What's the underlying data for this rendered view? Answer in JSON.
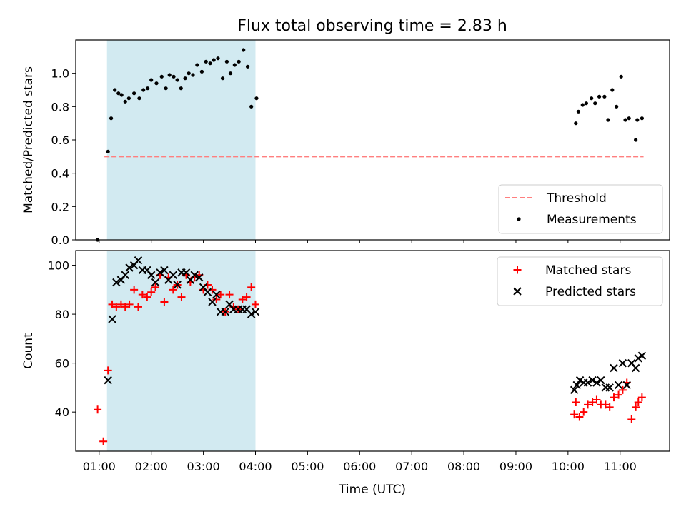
{
  "figure": {
    "title": "Flux total observing time = 2.83 h",
    "xlabel": "Time (UTC)"
  },
  "colors": {
    "highlight": "#add8e6",
    "threshold": "#ff7f7f",
    "measurements": "#000000",
    "matched": "#ff0000",
    "predicted": "#000000"
  },
  "chart_data": [
    {
      "type": "scatter",
      "title": "Flux total observing time = 2.83 h",
      "xlabel": "",
      "ylabel": "Matched/Predicted stars",
      "xlim_hours": [
        0.55,
        11.95
      ],
      "ylim": [
        0,
        1.2
      ],
      "yticks": [
        0.0,
        0.2,
        0.4,
        0.6,
        0.8,
        1.0
      ],
      "ytick_labels": [
        "0.0",
        "0.2",
        "0.4",
        "0.6",
        "0.8",
        "1.0"
      ],
      "highlight_span_hours": [
        1.15,
        4.0
      ],
      "threshold": {
        "name": "Threshold",
        "y": 0.5,
        "x_from_hours": 1.1,
        "x_to_hours": 11.45,
        "style": "dashed"
      },
      "legend_position": "lower right",
      "series": [
        {
          "name": "Measurements",
          "marker": "dot",
          "x_hours": [
            0.97,
            1.17,
            1.23,
            1.3,
            1.37,
            1.43,
            1.5,
            1.57,
            1.67,
            1.77,
            1.85,
            1.93,
            2.0,
            2.1,
            2.2,
            2.28,
            2.35,
            2.43,
            2.5,
            2.57,
            2.65,
            2.72,
            2.8,
            2.88,
            2.97,
            3.05,
            3.13,
            3.2,
            3.28,
            3.37,
            3.45,
            3.52,
            3.6,
            3.68,
            3.77,
            3.85,
            3.92,
            4.02,
            10.15,
            10.2,
            10.28,
            10.35,
            10.45,
            10.52,
            10.6,
            10.7,
            10.77,
            10.85,
            10.93,
            11.02,
            11.1,
            11.17,
            11.3,
            11.33,
            11.42
          ],
          "y": [
            0.0,
            0.53,
            0.73,
            0.9,
            0.88,
            0.87,
            0.83,
            0.85,
            0.88,
            0.85,
            0.9,
            0.91,
            0.96,
            0.94,
            0.98,
            0.91,
            0.99,
            0.98,
            0.96,
            0.91,
            0.97,
            1.0,
            0.99,
            1.05,
            1.01,
            1.07,
            1.06,
            1.08,
            1.09,
            0.97,
            1.07,
            1.0,
            1.05,
            1.07,
            1.14,
            1.04,
            0.8,
            0.85,
            0.7,
            0.77,
            0.81,
            0.82,
            0.85,
            0.82,
            0.86,
            0.86,
            0.72,
            0.9,
            0.8,
            0.98,
            0.72,
            0.73,
            0.6,
            0.72,
            0.73
          ]
        }
      ]
    },
    {
      "type": "scatter",
      "xlabel": "Time (UTC)",
      "ylabel": "Count",
      "xlim_hours": [
        0.55,
        11.95
      ],
      "ylim": [
        24,
        106
      ],
      "yticks": [
        40,
        60,
        80,
        100
      ],
      "ytick_labels": [
        "40",
        "60",
        "80",
        "100"
      ],
      "xticks_hours": [
        1,
        2,
        3,
        4,
        5,
        6,
        7,
        8,
        9,
        10,
        11
      ],
      "xtick_labels": [
        "01:00",
        "02:00",
        "03:00",
        "04:00",
        "05:00",
        "06:00",
        "07:00",
        "08:00",
        "09:00",
        "10:00",
        "11:00"
      ],
      "highlight_span_hours": [
        1.15,
        4.0
      ],
      "legend_position": "upper right",
      "series": [
        {
          "name": "Matched stars",
          "marker": "plus",
          "x_hours": [
            0.97,
            1.08,
            1.17,
            1.25,
            1.33,
            1.42,
            1.5,
            1.58,
            1.67,
            1.75,
            1.83,
            1.92,
            2.0,
            2.08,
            2.17,
            2.25,
            2.33,
            2.42,
            2.5,
            2.58,
            2.67,
            2.75,
            2.83,
            2.92,
            3.0,
            3.08,
            3.17,
            3.25,
            3.33,
            3.42,
            3.5,
            3.58,
            3.67,
            3.75,
            3.83,
            3.92,
            4.0,
            10.12,
            10.15,
            10.22,
            10.3,
            10.38,
            10.47,
            10.55,
            10.63,
            10.72,
            10.8,
            10.88,
            10.97,
            11.05,
            11.13,
            11.22,
            11.3,
            11.35,
            11.42
          ],
          "y": [
            41,
            28,
            57,
            84,
            83,
            84,
            83,
            84,
            90,
            83,
            88,
            87,
            89,
            91,
            96,
            85,
            95,
            90,
            92,
            87,
            96,
            93,
            95,
            96,
            90,
            92,
            90,
            86,
            88,
            81,
            88,
            83,
            82,
            86,
            87,
            91,
            84,
            39,
            44,
            38,
            40,
            43,
            44,
            45,
            43,
            43,
            42,
            46,
            47,
            49,
            52,
            37,
            42,
            44,
            46
          ]
        },
        {
          "name": "Predicted stars",
          "marker": "x",
          "x_hours": [
            1.17,
            1.25,
            1.33,
            1.42,
            1.5,
            1.58,
            1.67,
            1.75,
            1.83,
            1.92,
            2.0,
            2.08,
            2.17,
            2.25,
            2.33,
            2.42,
            2.5,
            2.58,
            2.67,
            2.75,
            2.83,
            2.92,
            3.0,
            3.08,
            3.17,
            3.25,
            3.33,
            3.42,
            3.5,
            3.58,
            3.67,
            3.75,
            3.83,
            3.92,
            4.0,
            10.12,
            10.17,
            10.23,
            10.3,
            10.38,
            10.47,
            10.55,
            10.63,
            10.72,
            10.8,
            10.88,
            10.97,
            11.05,
            11.13,
            11.22,
            11.3,
            11.35,
            11.42
          ],
          "y": [
            53,
            78,
            93,
            94,
            96,
            99,
            100,
            102,
            98,
            98,
            96,
            93,
            97,
            98,
            94,
            96,
            92,
            97,
            97,
            94,
            96,
            95,
            91,
            89,
            85,
            88,
            81,
            81,
            84,
            82,
            82,
            82,
            82,
            80,
            81,
            49,
            51,
            53,
            52,
            52,
            53,
            52,
            53,
            50,
            50,
            58,
            51,
            60,
            51,
            60,
            58,
            62,
            63
          ]
        }
      ]
    }
  ]
}
